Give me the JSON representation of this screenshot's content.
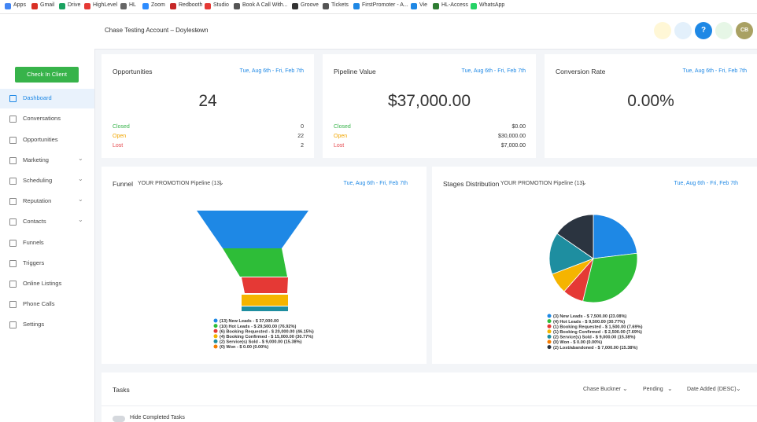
{
  "bookmarks": [
    "Apps",
    "Gmail",
    "Drive",
    "HighLevel",
    "HL",
    "Zoom",
    "Redbooth",
    "Studio",
    "Book A Call With...",
    "Groove",
    "Tickets",
    "FirstPromoter - A...",
    "Vie",
    "HL-Access",
    "WhatsApp"
  ],
  "header": {
    "account": "Chase Testing Account – Doylestown",
    "help": "?",
    "avatar": "CB"
  },
  "sidebar": {
    "button": "Check In Client",
    "menu": [
      "Dashboard",
      "Conversations",
      "Opportunities",
      "Marketing",
      "Scheduling",
      "Reputation",
      "Contacts",
      "Funnels",
      "Triggers",
      "Online Listings",
      "Phone Calls",
      "Settings"
    ]
  },
  "cards": [
    {
      "title": "Opportunities",
      "date": "Tue, Aug 6th - Fri, Feb 7th",
      "value": "24",
      "rows": [
        {
          "label": "Closed",
          "value": "0"
        },
        {
          "label": "Open",
          "value": "22"
        },
        {
          "label": "Lost",
          "value": "2"
        }
      ]
    },
    {
      "title": "Pipeline Value",
      "date": "Tue, Aug 6th - Fri, Feb 7th",
      "value": "$37,000.00",
      "rows": [
        {
          "label": "Closed",
          "value": "$0.00"
        },
        {
          "label": "Open",
          "value": "$30,000.00"
        },
        {
          "label": "Lost",
          "value": "$7,000.00"
        }
      ]
    },
    {
      "title": "Conversion Rate",
      "date": "Tue, Aug 6th - Fri, Feb 7th",
      "value": "0.00%",
      "rows": []
    }
  ],
  "funnel": {
    "title": "Funnel",
    "pipeline": "YOUR PROMOTION Pipeline (13)",
    "date": "Tue, Aug 6th - Fri, Feb 7th",
    "legend": [
      "(13) New Leads - $ 37,000.00",
      "(10) Hot Leads - $ 29,500.00 (76.92%)",
      "(6) Booking Requested - $ 20,000.00 (46.15%)",
      "(4) Booking Confirmed - $ 15,000.00 (30.77%)",
      "(2) Service(s) Sold - $ 9,000.00 (15.38%)",
      "(0) Won - $ 0.00 (0.00%)"
    ],
    "values": [
      100,
      76.92,
      46.15,
      30.77,
      15.38,
      0
    ],
    "colors": [
      "#1e88e5",
      "#2ebd38",
      "#e53935",
      "#f5b400",
      "#1e8ea0",
      "#f57c00"
    ]
  },
  "stages": {
    "title": "Stages Distribution",
    "pipeline": "YOUR PROMOTION Pipeline (13)",
    "date": "Tue, Aug 6th - Fri, Feb 7th",
    "legend": [
      "(3) New Leads - $ 7,500.00 (23.08%)",
      "(4) Hot Leads - $ 9,500.00 (30.77%)",
      "(1) Booking Requested - $ 1,500.00 (7.69%)",
      "(1) Booking Confirmed - $ 2,500.00 (7.69%)",
      "(2) Service(s) Sold - $ 9,000.00 (15.38%)",
      "(0) Won - $ 0.00 (0.00%)",
      "(2) Lost/abandoned - $ 7,000.00 (15.38%)"
    ],
    "values": [
      23.08,
      30.77,
      7.69,
      7.69,
      15.38,
      0,
      15.38
    ],
    "colors": [
      "#1e88e5",
      "#2ebd38",
      "#e53935",
      "#f5b400",
      "#1e8ea0",
      "#f57c00",
      "#2b3440"
    ]
  },
  "tasks": {
    "title": "Tasks",
    "filters": [
      "Chase Buckner",
      "Pending",
      "Date Added (DESC)"
    ],
    "toggle": "Hide Completed Tasks"
  }
}
